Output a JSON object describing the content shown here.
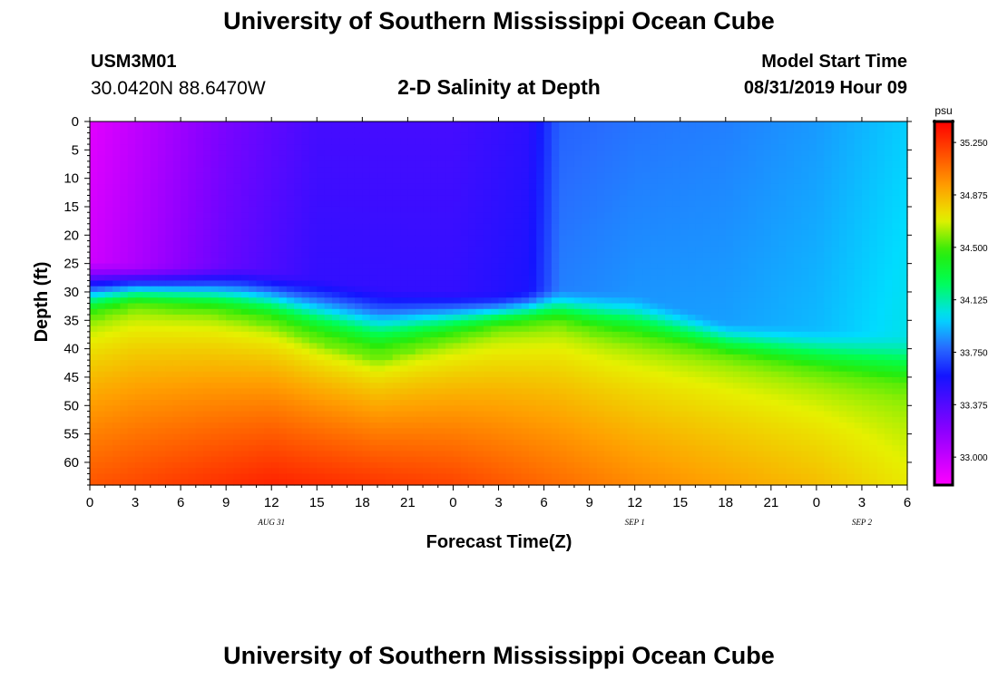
{
  "header": {
    "title": "University of Southern Mississippi Ocean Cube",
    "station_id": "USM3M01",
    "coordinates": "30.0420N 88.6470W",
    "subtitle": "2-D Salinity at Depth",
    "model_start_label": "Model Start Time",
    "model_start_value": "08/31/2019 Hour 09"
  },
  "footer": {
    "title": "University of Southern Mississippi Ocean Cube"
  },
  "chart_data": {
    "type": "heatmap",
    "title": "2-D Salinity at Depth",
    "xlabel": "Forecast Time(Z)",
    "ylabel": "Depth (ft)",
    "x_range_hours": [
      0,
      54
    ],
    "y_range_ft": [
      0,
      64
    ],
    "x_ticks": [
      {
        "hour": 0,
        "label": "0"
      },
      {
        "hour": 3,
        "label": "3"
      },
      {
        "hour": 6,
        "label": "6"
      },
      {
        "hour": 9,
        "label": "9"
      },
      {
        "hour": 12,
        "label": "12"
      },
      {
        "hour": 15,
        "label": "15"
      },
      {
        "hour": 18,
        "label": "18"
      },
      {
        "hour": 21,
        "label": "21"
      },
      {
        "hour": 24,
        "label": "0"
      },
      {
        "hour": 27,
        "label": "3"
      },
      {
        "hour": 30,
        "label": "6"
      },
      {
        "hour": 33,
        "label": "9"
      },
      {
        "hour": 36,
        "label": "12"
      },
      {
        "hour": 39,
        "label": "15"
      },
      {
        "hour": 42,
        "label": "18"
      },
      {
        "hour": 45,
        "label": "21"
      },
      {
        "hour": 48,
        "label": "0"
      },
      {
        "hour": 51,
        "label": "3"
      },
      {
        "hour": 54,
        "label": "6"
      }
    ],
    "date_labels": [
      {
        "hour": 12,
        "label": "AUG 31"
      },
      {
        "hour": 36,
        "label": "SEP 1"
      },
      {
        "hour": 51,
        "label": "SEP 2"
      }
    ],
    "y_ticks": [
      0,
      5,
      10,
      15,
      20,
      25,
      30,
      35,
      40,
      45,
      50,
      55,
      60
    ],
    "colorbar": {
      "unit": "psu",
      "range": [
        32.8,
        35.4
      ],
      "tick_values": [
        33.0,
        33.375,
        33.75,
        34.125,
        34.5,
        34.875,
        35.25
      ],
      "tick_labels": [
        "33.000",
        "33.375",
        "33.750",
        "34.125",
        "34.500",
        "34.875",
        "35.250"
      ]
    },
    "surface_salinity": [
      {
        "hour": 0,
        "value": 32.9
      },
      {
        "hour": 4,
        "value": 33.05
      },
      {
        "hour": 9,
        "value": 33.25
      },
      {
        "hour": 15,
        "value": 33.42
      },
      {
        "hour": 24,
        "value": 33.42
      },
      {
        "hour": 29,
        "value": 33.5
      },
      {
        "hour": 30,
        "value": 33.62
      },
      {
        "hour": 31,
        "value": 33.76
      },
      {
        "hour": 36,
        "value": 33.8
      },
      {
        "hour": 42,
        "value": 33.82
      },
      {
        "hour": 48,
        "value": 33.87
      },
      {
        "hour": 54,
        "value": 33.97
      }
    ],
    "halocline_depth_ft": [
      {
        "hour": 0,
        "value": 35
      },
      {
        "hour": 3,
        "value": 33
      },
      {
        "hour": 8,
        "value": 34
      },
      {
        "hour": 12,
        "value": 36
      },
      {
        "hour": 15,
        "value": 39
      },
      {
        "hour": 19,
        "value": 42
      },
      {
        "hour": 22,
        "value": 40
      },
      {
        "hour": 27,
        "value": 37
      },
      {
        "hour": 31,
        "value": 36
      },
      {
        "hour": 34,
        "value": 38
      },
      {
        "hour": 38,
        "value": 40
      },
      {
        "hour": 42,
        "value": 42
      },
      {
        "hour": 48,
        "value": 45
      },
      {
        "hour": 54,
        "value": 48
      }
    ],
    "upper_mixed_layer_depth_ft": [
      {
        "hour": 0,
        "value": 24
      },
      {
        "hour": 3,
        "value": 25
      },
      {
        "hour": 10,
        "value": 25
      },
      {
        "hour": 15,
        "value": 27
      },
      {
        "hour": 20,
        "value": 29
      },
      {
        "hour": 27,
        "value": 30
      },
      {
        "hour": 30,
        "value": 29
      },
      {
        "hour": 36,
        "value": 30
      },
      {
        "hour": 42,
        "value": 35
      },
      {
        "hour": 48,
        "value": 36
      },
      {
        "hour": 54,
        "value": 37
      }
    ],
    "bottom_salinity": [
      {
        "hour": 0,
        "value": 35.15
      },
      {
        "hour": 12,
        "value": 35.3
      },
      {
        "hour": 24,
        "value": 35.2
      },
      {
        "hour": 36,
        "value": 35.0
      },
      {
        "hour": 48,
        "value": 34.85
      },
      {
        "hour": 54,
        "value": 34.72
      }
    ]
  }
}
